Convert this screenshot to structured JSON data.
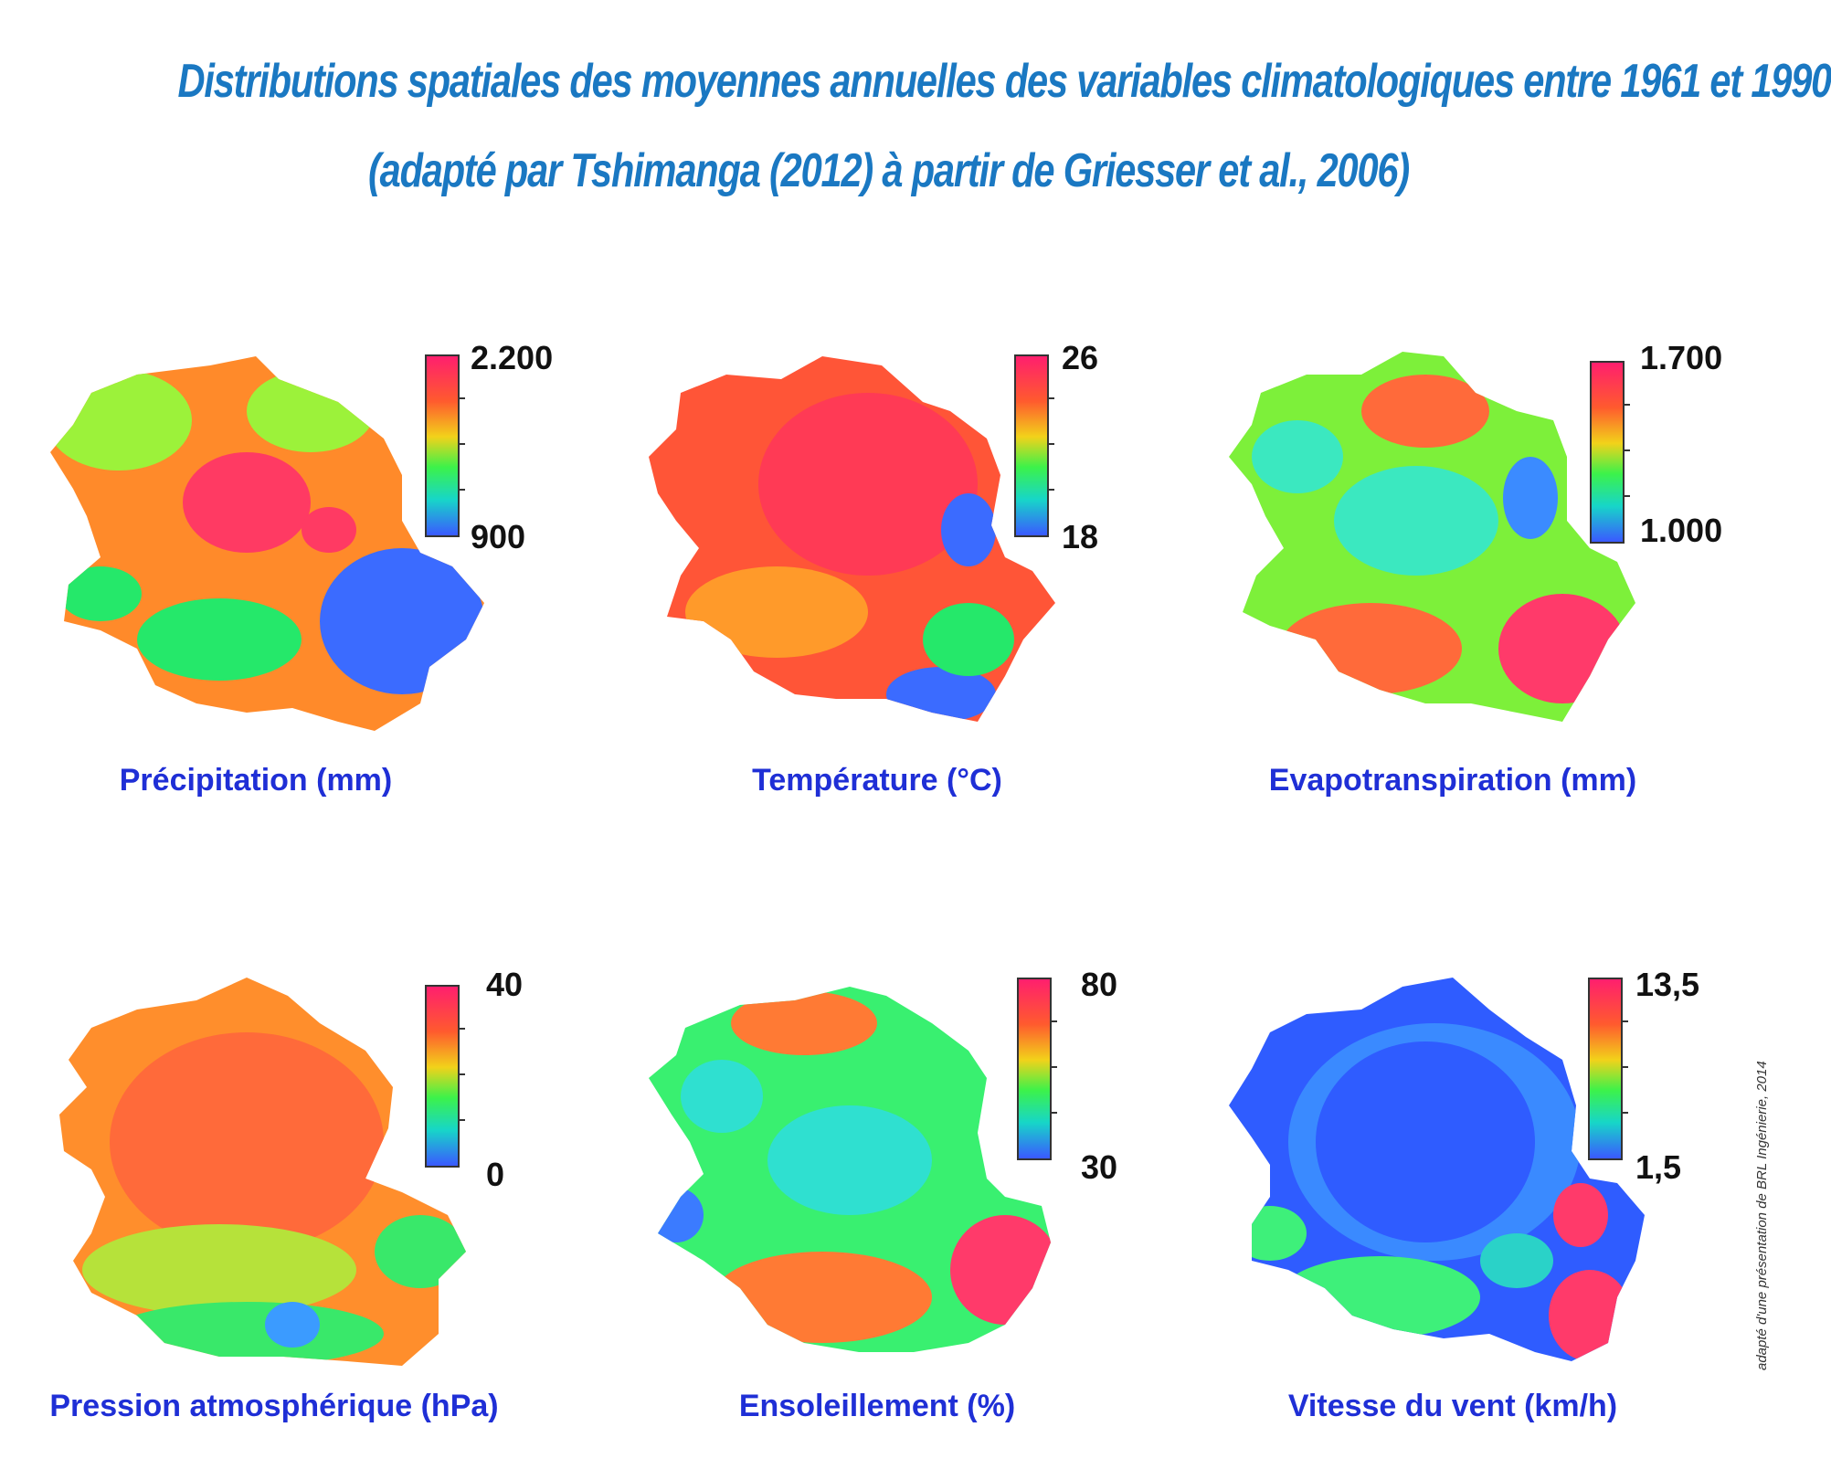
{
  "title": {
    "line1": "Distributions spatiales des moyennes annuelles des variables climatologiques entre 1961 et 1990",
    "line2": "(adapté par Tshimanga (2012) à partir de Griesser et al., 2006)"
  },
  "panels": [
    {
      "caption": "Précipitation (mm)",
      "scale_max": "2.200",
      "scale_min": "900",
      "map_colors": [
        "#ff8a2a",
        "#ff3a63",
        "#9cf23a",
        "#3b6bff",
        "#25e86a"
      ]
    },
    {
      "caption": "Température (°C)",
      "scale_max": "26",
      "scale_min": "18",
      "map_colors": [
        "#ff5537",
        "#ff3a55",
        "#ff9a2a",
        "#3b6bff",
        "#25e86a"
      ]
    },
    {
      "caption": "Evapotranspiration (mm)",
      "scale_max": "1.700",
      "scale_min": "1.000",
      "map_colors": [
        "#7df03a",
        "#3be8c0",
        "#ff6a3a",
        "#ff3a6a",
        "#3b8bff"
      ]
    },
    {
      "caption": "Pression atmosphérique (hPa)",
      "scale_max": "40",
      "scale_min": "0",
      "map_colors": [
        "#ff8e2c",
        "#ff6a3a",
        "#b6e23a",
        "#39e86a",
        "#3b9bff"
      ]
    },
    {
      "caption": "Ensoleillement (%)",
      "scale_max": "80",
      "scale_min": "30",
      "map_colors": [
        "#39f070",
        "#2fe0d0",
        "#ff7a34",
        "#ff3a6a",
        "#3b7bff"
      ]
    },
    {
      "caption": "Vitesse du vent (km/h)",
      "scale_max": "13,5",
      "scale_min": "1,5",
      "map_colors": [
        "#2f5cff",
        "#3a8aff",
        "#3ef07a",
        "#ff3a6a",
        "#2ad2c8"
      ]
    }
  ],
  "credit": "adapté d'une présentation de BRL Ingénierie, 2014"
}
